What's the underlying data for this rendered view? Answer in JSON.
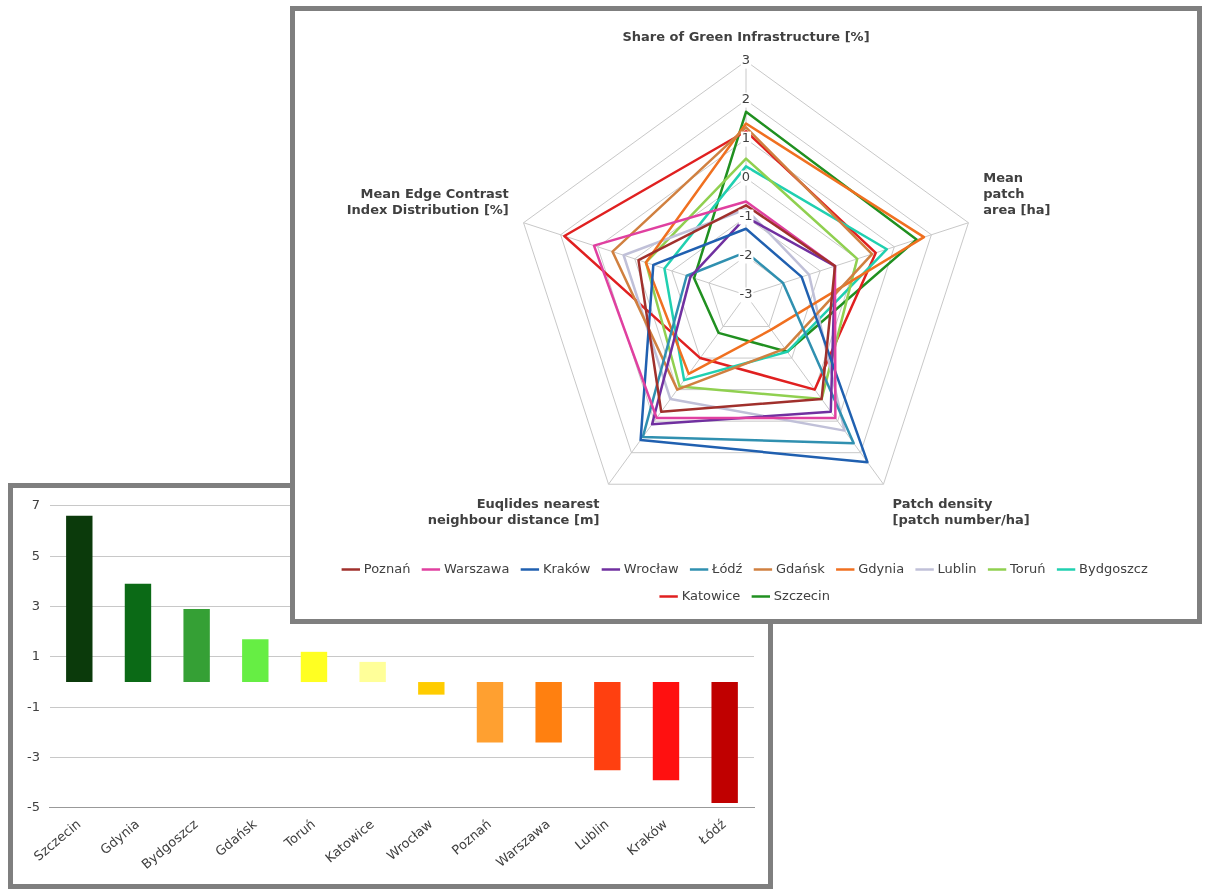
{
  "chart_data": [
    {
      "type": "bar",
      "categories": [
        "Szczecin",
        "Gdynia",
        "Bydgoszcz",
        "Gdańsk",
        "Toruń",
        "Katowice",
        "Wrocław",
        "Poznań",
        "Warszawa",
        "Lublin",
        "Kraków",
        "Łódź"
      ],
      "values": [
        6.6,
        3.9,
        2.9,
        1.7,
        1.2,
        0.8,
        -0.5,
        -2.4,
        -2.4,
        -3.5,
        -3.9,
        -4.8
      ],
      "colors": [
        "#0b3a0b",
        "#0b6a16",
        "#35a035",
        "#66ee44",
        "#ffff22",
        "#ffff99",
        "#ffcc00",
        "#ffa030",
        "#ff8010",
        "#ff4010",
        "#ff1010",
        "#c00000"
      ],
      "ylim": [
        -5,
        7
      ],
      "yticks": [
        -5,
        -3,
        -1,
        1,
        3,
        5,
        7
      ],
      "grid": "y",
      "legend": false
    },
    {
      "type": "radar",
      "categories": [
        "Share of Green Infrastructure [%]",
        "Mean\npatch\narea [ha]",
        "Patch density\n[patch number/ha]",
        "Euqlides nearest\nneighbour distance [m]",
        "Mean Edge Contrast\nIndex Distribution [%]"
      ],
      "ylim": [
        -3,
        3
      ],
      "yticks": [
        -3,
        -2,
        -1,
        0,
        1,
        2,
        3
      ],
      "grid": true,
      "legend": "bottom",
      "series": [
        {
          "name": "Poznań",
          "color": "#a0302c",
          "values": [
            -0.7,
            -0.6,
            0.3,
            0.7,
            -0.1
          ]
        },
        {
          "name": "Warszawa",
          "color": "#e040a0",
          "values": [
            -0.6,
            -0.6,
            0.9,
            0.9,
            1.1
          ]
        },
        {
          "name": "Kraków",
          "color": "#2060b0",
          "values": [
            -1.3,
            -1.5,
            2.3,
            1.6,
            -0.5
          ]
        },
        {
          "name": "Wrocław",
          "color": "#7030a0",
          "values": [
            -1.0,
            -0.6,
            0.7,
            1.1,
            -1.5
          ]
        },
        {
          "name": "Łódź",
          "color": "#3090b0",
          "values": [
            -1.9,
            -2.0,
            1.7,
            1.5,
            -1.4
          ]
        },
        {
          "name": "Gdańsk",
          "color": "#d08040",
          "values": [
            1.3,
            0.4,
            -1.3,
            0.0,
            0.6
          ]
        },
        {
          "name": "Gdynia",
          "color": "#f07020",
          "values": [
            1.4,
            1.8,
            -1.9,
            -0.5,
            -0.3
          ]
        },
        {
          "name": "Lublin",
          "color": "#c0c0d8",
          "values": [
            -0.8,
            -1.3,
            1.3,
            0.3,
            0.3
          ]
        },
        {
          "name": "Toruń",
          "color": "#90d050",
          "values": [
            0.5,
            0.0,
            0.3,
            -0.1,
            -0.3
          ]
        },
        {
          "name": "Bydgoszcz",
          "color": "#20d0b0",
          "values": [
            0.3,
            0.8,
            -1.2,
            -0.3,
            -0.8
          ]
        },
        {
          "name": "Katowice",
          "color": "#e02020",
          "values": [
            1.2,
            0.5,
            0.0,
            -1.0,
            1.9
          ]
        },
        {
          "name": "Szczecin",
          "color": "#209020",
          "values": [
            1.7,
            1.6,
            -1.2,
            -1.8,
            -1.6
          ]
        }
      ]
    }
  ]
}
